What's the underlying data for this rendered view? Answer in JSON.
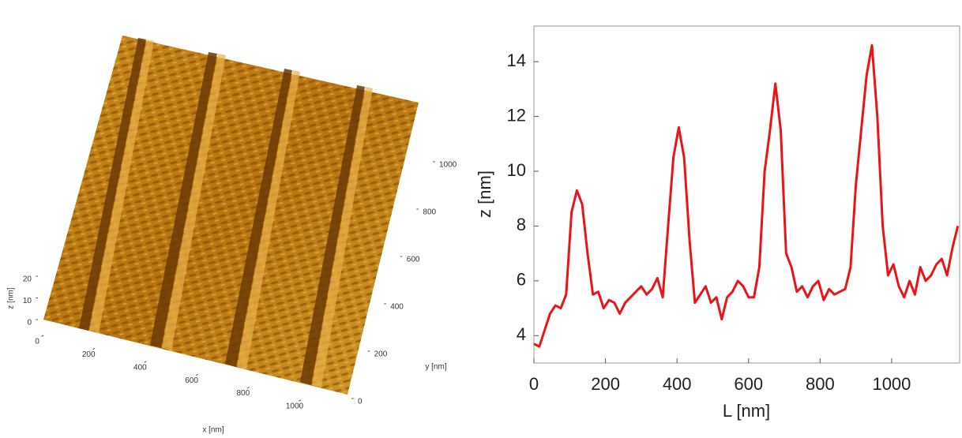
{
  "chart_data": [
    {
      "type": "surface",
      "xlabel": "x [nm]",
      "ylabel": "y [nm]",
      "zlabel": "z [nm]",
      "xticks": [
        0,
        200,
        400,
        600,
        800,
        1000
      ],
      "yticks": [
        0,
        200,
        400,
        600,
        800,
        1000
      ],
      "zticks": [
        0,
        10,
        20
      ],
      "color": "#b8740e"
    },
    {
      "type": "line",
      "xlabel": "L [nm]",
      "ylabel": "z [nm]",
      "xlim": [
        0,
        1190
      ],
      "ylim": [
        3,
        15.3
      ],
      "xticks": [
        0,
        200,
        400,
        600,
        800,
        1000
      ],
      "yticks": [
        4,
        6,
        8,
        10,
        12,
        14
      ],
      "series": [
        {
          "color": "#e8141a",
          "x": [
            0,
            15,
            30,
            45,
            60,
            75,
            90,
            105,
            120,
            135,
            150,
            165,
            180,
            195,
            210,
            225,
            240,
            255,
            270,
            285,
            300,
            315,
            330,
            345,
            360,
            375,
            390,
            405,
            420,
            435,
            450,
            465,
            480,
            495,
            510,
            525,
            540,
            555,
            570,
            585,
            600,
            615,
            630,
            645,
            660,
            675,
            690,
            705,
            720,
            735,
            750,
            765,
            780,
            795,
            810,
            825,
            840,
            855,
            870,
            885,
            900,
            915,
            930,
            945,
            960,
            975,
            990,
            1005,
            1020,
            1035,
            1050,
            1065,
            1080,
            1095,
            1110,
            1125,
            1140,
            1155,
            1170,
            1185
          ],
          "values": [
            3.7,
            3.6,
            4.2,
            4.8,
            5.1,
            5.0,
            5.5,
            8.5,
            9.3,
            8.8,
            7.0,
            5.5,
            5.6,
            5.0,
            5.3,
            5.2,
            4.8,
            5.2,
            5.4,
            5.6,
            5.8,
            5.5,
            5.7,
            6.1,
            5.4,
            8.0,
            10.5,
            11.6,
            10.5,
            7.5,
            5.2,
            5.5,
            5.8,
            5.2,
            5.4,
            4.6,
            5.4,
            5.6,
            6.0,
            5.8,
            5.4,
            5.4,
            6.5,
            10.0,
            11.5,
            13.2,
            11.5,
            7.0,
            6.5,
            5.6,
            5.8,
            5.4,
            5.8,
            6.0,
            5.3,
            5.7,
            5.5,
            5.6,
            5.7,
            6.5,
            9.5,
            11.5,
            13.5,
            14.6,
            12.0,
            8.0,
            6.2,
            6.6,
            5.8,
            5.4,
            6.0,
            5.5,
            6.5,
            6.0,
            6.2,
            6.6,
            6.8,
            6.2,
            7.2,
            8.0
          ]
        }
      ]
    }
  ]
}
